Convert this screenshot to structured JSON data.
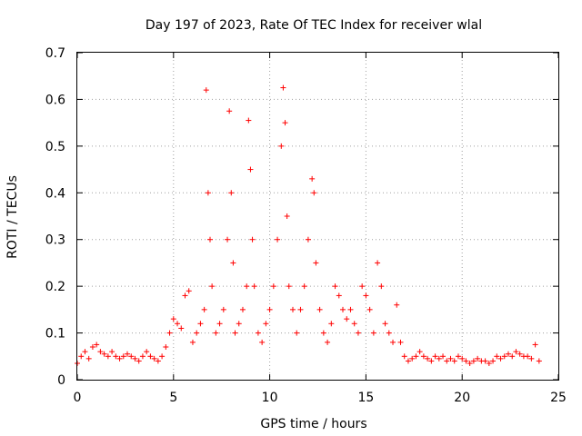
{
  "chart_data": {
    "type": "scatter",
    "title": "Day 197 of 2023, Rate Of TEC Index for receiver wlal",
    "xlabel": "GPS time / hours",
    "ylabel": "ROTI / TECUs",
    "xlim": [
      0,
      25
    ],
    "ylim": [
      0,
      0.7
    ],
    "x_ticks": [
      "0",
      "5",
      "10",
      "15",
      "20",
      "25"
    ],
    "y_ticks": [
      "0",
      "0.1",
      "0.2",
      "0.3",
      "0.4",
      "0.5",
      "0.6",
      "0.7"
    ],
    "grid": true,
    "legend": "none",
    "marker": "plus",
    "color": "#ff0000",
    "series": [
      {
        "x": [
          0.0,
          0.2,
          0.4,
          0.6,
          0.8,
          1.0,
          1.2,
          1.4,
          1.6,
          1.8,
          2.0,
          2.2,
          2.4,
          2.6,
          2.8,
          3.0,
          3.2,
          3.4,
          3.6,
          3.8,
          4.0,
          4.2,
          4.4,
          4.6,
          4.8,
          5.0,
          5.2,
          5.4,
          5.6,
          5.8,
          6.0,
          6.2,
          6.4,
          6.6,
          6.7,
          6.8,
          6.9,
          7.0,
          7.2,
          7.4,
          7.6,
          7.8,
          7.9,
          8.0,
          8.1,
          8.2,
          8.4,
          8.6,
          8.8,
          8.9,
          9.0,
          9.1,
          9.2,
          9.4,
          9.6,
          9.8,
          10.0,
          10.2,
          10.4,
          10.6,
          10.7,
          10.8,
          10.9,
          11.0,
          11.2,
          11.4,
          11.6,
          11.8,
          12.0,
          12.2,
          12.3,
          12.4,
          12.6,
          12.8,
          13.0,
          13.2,
          13.4,
          13.6,
          13.8,
          14.0,
          14.2,
          14.4,
          14.6,
          14.8,
          15.0,
          15.2,
          15.4,
          15.6,
          15.8,
          16.0,
          16.2,
          16.4,
          16.6,
          16.8,
          17.0,
          17.2,
          17.4,
          17.6,
          17.8,
          18.0,
          18.2,
          18.4,
          18.6,
          18.8,
          19.0,
          19.2,
          19.4,
          19.6,
          19.8,
          20.0,
          20.2,
          20.4,
          20.6,
          20.8,
          21.0,
          21.2,
          21.4,
          21.6,
          21.8,
          22.0,
          22.2,
          22.4,
          22.6,
          22.8,
          23.0,
          23.2,
          23.4,
          23.6,
          23.8,
          24.0
        ],
        "y": [
          0.035,
          0.05,
          0.06,
          0.045,
          0.07,
          0.075,
          0.06,
          0.055,
          0.05,
          0.06,
          0.05,
          0.045,
          0.05,
          0.055,
          0.05,
          0.045,
          0.04,
          0.05,
          0.06,
          0.05,
          0.045,
          0.04,
          0.05,
          0.07,
          0.1,
          0.13,
          0.12,
          0.11,
          0.18,
          0.19,
          0.08,
          0.1,
          0.12,
          0.15,
          0.62,
          0.4,
          0.3,
          0.2,
          0.1,
          0.12,
          0.15,
          0.3,
          0.575,
          0.4,
          0.25,
          0.1,
          0.12,
          0.15,
          0.2,
          0.555,
          0.45,
          0.3,
          0.2,
          0.1,
          0.08,
          0.12,
          0.15,
          0.2,
          0.3,
          0.5,
          0.625,
          0.55,
          0.35,
          0.2,
          0.15,
          0.1,
          0.15,
          0.2,
          0.3,
          0.43,
          0.4,
          0.25,
          0.15,
          0.1,
          0.08,
          0.12,
          0.2,
          0.18,
          0.15,
          0.13,
          0.15,
          0.12,
          0.1,
          0.2,
          0.18,
          0.15,
          0.1,
          0.25,
          0.2,
          0.12,
          0.1,
          0.08,
          0.16,
          0.08,
          0.05,
          0.04,
          0.045,
          0.05,
          0.06,
          0.05,
          0.045,
          0.04,
          0.05,
          0.045,
          0.05,
          0.04,
          0.045,
          0.04,
          0.05,
          0.045,
          0.04,
          0.035,
          0.04,
          0.045,
          0.04,
          0.04,
          0.035,
          0.04,
          0.05,
          0.045,
          0.05,
          0.055,
          0.05,
          0.06,
          0.055,
          0.05,
          0.05,
          0.045,
          0.075,
          0.04
        ]
      }
    ]
  }
}
